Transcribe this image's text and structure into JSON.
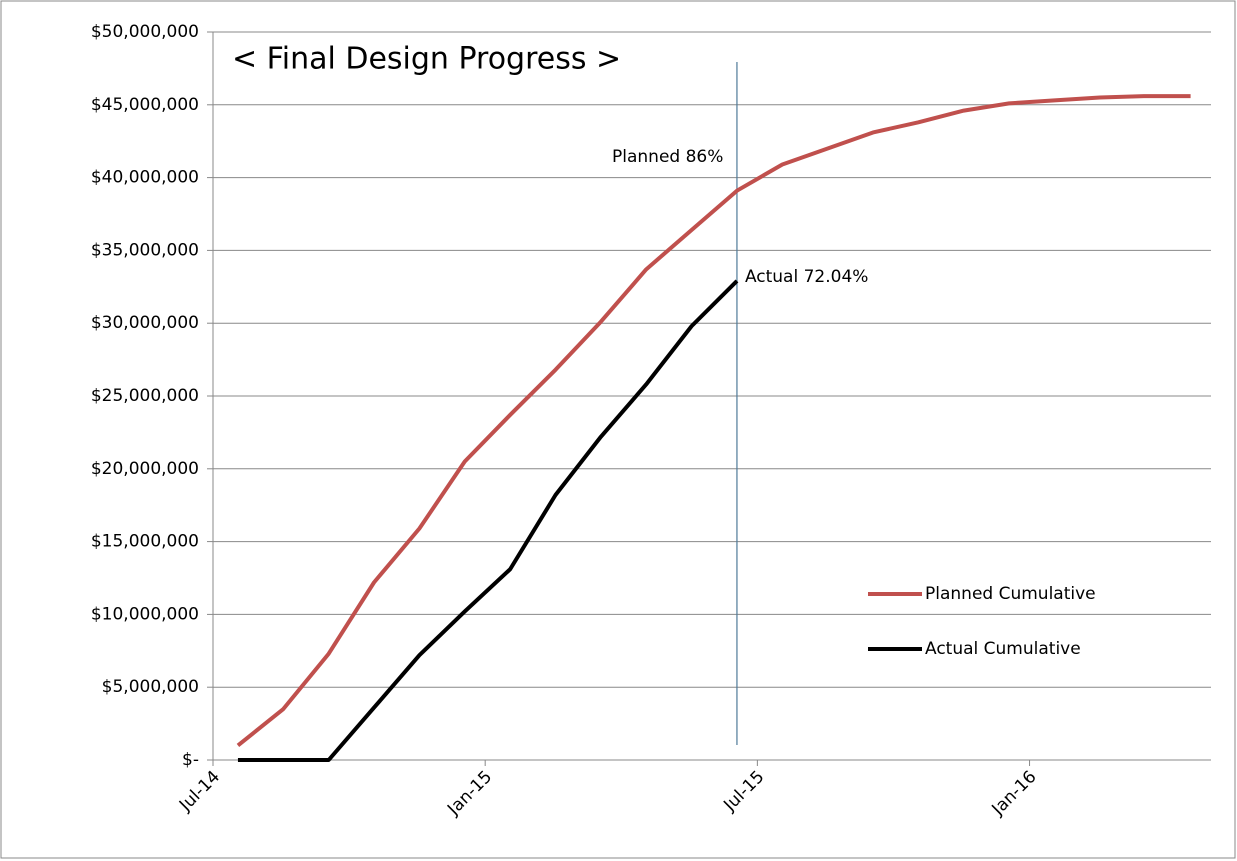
{
  "chart_data": {
    "type": "line",
    "title": "< Final Design Progress >",
    "categories": [
      "Jul-14",
      null,
      null,
      null,
      null,
      null,
      "Jan-15",
      null,
      null,
      null,
      null,
      null,
      "Jul-15",
      null,
      null,
      null,
      null,
      null,
      "Jan-16",
      null,
      null,
      null
    ],
    "series": [
      {
        "name": "Planned Cumulative",
        "color": "#c0504d",
        "values": [
          1000000,
          3500000,
          7300000,
          12200000,
          15900000,
          20500000,
          23700000,
          26800000,
          30100000,
          33700000,
          36400000,
          39100000,
          40900000,
          42000000,
          43100000,
          43800000,
          44600000,
          45100000,
          45300000,
          45500000,
          45600000,
          45600000
        ]
      },
      {
        "name": "Actual Cumulative",
        "color": "#000000",
        "values": [
          0,
          0,
          0,
          3600000,
          7200000,
          10200000,
          13100000,
          18200000,
          22200000,
          25800000,
          29800000,
          32900000,
          null,
          null,
          null,
          null,
          null,
          null,
          null,
          null,
          null,
          null
        ]
      }
    ],
    "annotations": [
      "Planned 86%",
      "Actual 72.04%"
    ],
    "ylim": [
      0,
      50000000
    ],
    "yticks": [
      {
        "value": 0,
        "label": "$-"
      },
      {
        "value": 5000000,
        "label": "$5,000,000"
      },
      {
        "value": 10000000,
        "label": "$10,000,000"
      },
      {
        "value": 15000000,
        "label": "$15,000,000"
      },
      {
        "value": 20000000,
        "label": "$20,000,000"
      },
      {
        "value": 25000000,
        "label": "$25,000,000"
      },
      {
        "value": 30000000,
        "label": "$30,000,000"
      },
      {
        "value": 35000000,
        "label": "$35,000,000"
      },
      {
        "value": 40000000,
        "label": "$40,000,000"
      },
      {
        "value": 45000000,
        "label": "$45,000,000"
      },
      {
        "value": 50000000,
        "label": "$50,000,000"
      }
    ],
    "grid": true,
    "legend": "right"
  }
}
